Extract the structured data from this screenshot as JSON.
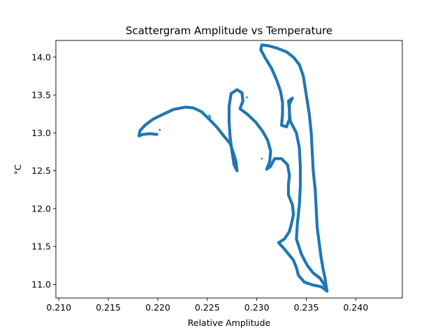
{
  "chart_data": {
    "type": "scatter",
    "title": "Scattergram Amplitude vs Temperature",
    "xlabel": "Relative Amplitude",
    "ylabel": "°C",
    "xlim": [
      0.2097,
      0.2447
    ],
    "ylim": [
      10.82,
      14.22
    ],
    "xticks": [
      0.21,
      0.215,
      0.22,
      0.225,
      0.23,
      0.235,
      0.24
    ],
    "xtick_labels": [
      "0.210",
      "0.215",
      "0.220",
      "0.225",
      "0.230",
      "0.235",
      "0.240"
    ],
    "yticks": [
      11.0,
      11.5,
      12.0,
      12.5,
      13.0,
      13.5,
      14.0
    ],
    "ytick_labels": [
      "11.0",
      "11.5",
      "12.0",
      "12.5",
      "13.0",
      "13.5",
      "14.0"
    ],
    "grid": false,
    "color": "#1f77b4",
    "series": [
      {
        "points": [
          [
            0.2199,
            12.98
          ],
          [
            0.2192,
            12.99
          ],
          [
            0.2185,
            12.98
          ],
          [
            0.2181,
            12.96
          ],
          [
            0.2182,
            13.03
          ],
          [
            0.2187,
            13.1
          ],
          [
            0.2195,
            13.18
          ],
          [
            0.2206,
            13.25
          ],
          [
            0.2216,
            13.31
          ],
          [
            0.2228,
            13.34
          ],
          [
            0.2236,
            13.33
          ],
          [
            0.2244,
            13.28
          ],
          [
            0.2252,
            13.18
          ],
          [
            0.226,
            13.07
          ],
          [
            0.2266,
            12.97
          ],
          [
            0.2273,
            12.86
          ],
          [
            0.2276,
            12.75
          ],
          [
            0.2279,
            12.62
          ],
          [
            0.228,
            12.5
          ],
          [
            0.2277,
            12.58
          ],
          [
            0.2275,
            12.75
          ],
          [
            0.2273,
            12.95
          ],
          [
            0.2272,
            13.15
          ],
          [
            0.2272,
            13.35
          ],
          [
            0.2274,
            13.52
          ],
          [
            0.228,
            13.57
          ],
          [
            0.2285,
            13.53
          ],
          [
            0.2286,
            13.42
          ],
          [
            0.2283,
            13.32
          ],
          [
            0.2291,
            13.24
          ],
          [
            0.2299,
            13.14
          ],
          [
            0.2306,
            13.02
          ],
          [
            0.2311,
            12.9
          ],
          [
            0.2314,
            12.76
          ],
          [
            0.2313,
            12.62
          ],
          [
            0.231,
            12.52
          ],
          [
            0.2314,
            12.56
          ],
          [
            0.2318,
            12.66
          ],
          [
            0.2325,
            12.66
          ],
          [
            0.2331,
            12.58
          ],
          [
            0.2333,
            12.44
          ],
          [
            0.2332,
            12.32
          ],
          [
            0.2332,
            12.18
          ],
          [
            0.2336,
            12.05
          ],
          [
            0.2337,
            11.92
          ],
          [
            0.2335,
            11.8
          ],
          [
            0.2333,
            11.7
          ],
          [
            0.2328,
            11.6
          ],
          [
            0.2322,
            11.55
          ],
          [
            0.2327,
            11.48
          ],
          [
            0.2332,
            11.4
          ],
          [
            0.2337,
            11.32
          ],
          [
            0.234,
            11.22
          ],
          [
            0.2342,
            11.12
          ],
          [
            0.2348,
            11.03
          ],
          [
            0.2357,
            10.99
          ],
          [
            0.2365,
            10.97
          ],
          [
            0.2371,
            10.91
          ],
          [
            0.237,
            10.98
          ],
          [
            0.2369,
            11.08
          ],
          [
            0.2367,
            11.2
          ],
          [
            0.2365,
            11.35
          ],
          [
            0.2363,
            11.55
          ],
          [
            0.2361,
            11.75
          ],
          [
            0.236,
            12.0
          ],
          [
            0.2359,
            12.25
          ],
          [
            0.2357,
            12.5
          ],
          [
            0.2356,
            12.75
          ],
          [
            0.2355,
            13.0
          ],
          [
            0.2353,
            13.25
          ],
          [
            0.235,
            13.5
          ],
          [
            0.2347,
            13.75
          ],
          [
            0.2343,
            13.9
          ],
          [
            0.2337,
            14.0
          ],
          [
            0.233,
            14.07
          ],
          [
            0.232,
            14.12
          ],
          [
            0.2312,
            14.15
          ],
          [
            0.2305,
            14.16
          ],
          [
            0.2304,
            14.1
          ],
          [
            0.2308,
            14.0
          ],
          [
            0.2315,
            13.85
          ],
          [
            0.232,
            13.7
          ],
          [
            0.2324,
            13.55
          ],
          [
            0.2326,
            13.4
          ],
          [
            0.2326,
            13.25
          ],
          [
            0.2325,
            13.1
          ],
          [
            0.233,
            13.08
          ],
          [
            0.2333,
            13.18
          ],
          [
            0.2333,
            13.3
          ],
          [
            0.2332,
            13.42
          ],
          [
            0.2336,
            13.46
          ],
          [
            0.2333,
            13.38
          ],
          [
            0.2333,
            13.25
          ],
          [
            0.2334,
            13.15
          ],
          [
            0.234,
            13.0
          ],
          [
            0.2343,
            12.8
          ],
          [
            0.2344,
            12.55
          ],
          [
            0.2344,
            12.3
          ],
          [
            0.2343,
            12.05
          ],
          [
            0.2341,
            11.8
          ],
          [
            0.234,
            11.6
          ],
          [
            0.2345,
            11.4
          ],
          [
            0.2351,
            11.25
          ],
          [
            0.2357,
            11.15
          ],
          [
            0.2364,
            11.08
          ],
          [
            0.2368,
            11.0
          ],
          [
            0.237,
            10.93
          ]
        ]
      }
    ],
    "outliers": [
      [
        0.2202,
        13.04
      ],
      [
        0.2252,
        13.23
      ],
      [
        0.2253,
        13.21
      ],
      [
        0.229,
        13.47
      ],
      [
        0.2305,
        12.66
      ]
    ]
  }
}
